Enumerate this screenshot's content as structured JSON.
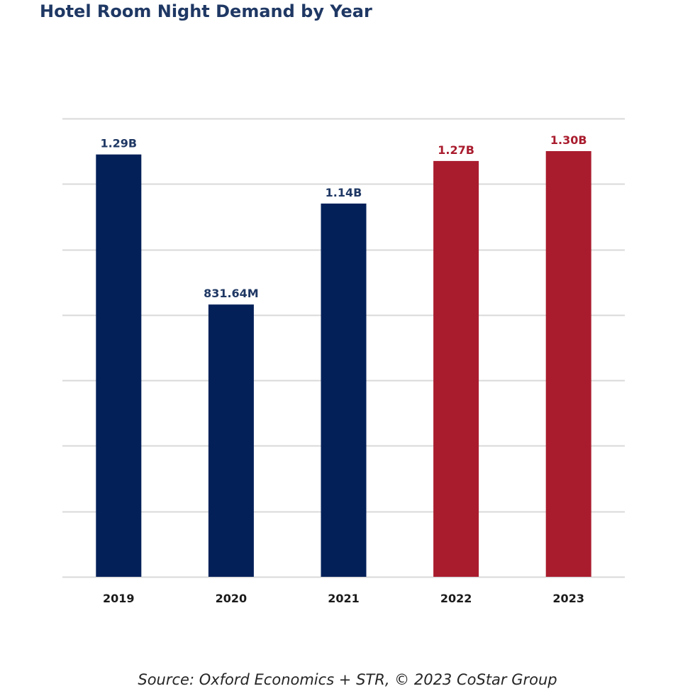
{
  "chart_data": {
    "type": "bar",
    "title": "Hotel Room Night Demand by Year",
    "categories": [
      "2019",
      "2020",
      "2021",
      "2022",
      "2023"
    ],
    "values": [
      1.29,
      0.83164,
      1.14,
      1.27,
      1.3
    ],
    "value_labels": [
      "1.29B",
      "831.64M",
      "1.14B",
      "1.27B",
      "1.30B"
    ],
    "unit": "billion room nights",
    "bar_colors": [
      "#032059",
      "#032059",
      "#032059",
      "#a91c2e",
      "#a91c2e"
    ],
    "label_colors": [
      "#1f3864",
      "#1f3864",
      "#1f3864",
      "#a91c2e",
      "#a91c2e"
    ],
    "gridline_color": "#d9d9d9",
    "ylim": [
      0,
      1.4
    ],
    "grid": true,
    "xlabel": "",
    "ylabel": "",
    "legend": "none"
  },
  "source": "Source: Oxford Economics + STR, © 2023 CoStar Group"
}
